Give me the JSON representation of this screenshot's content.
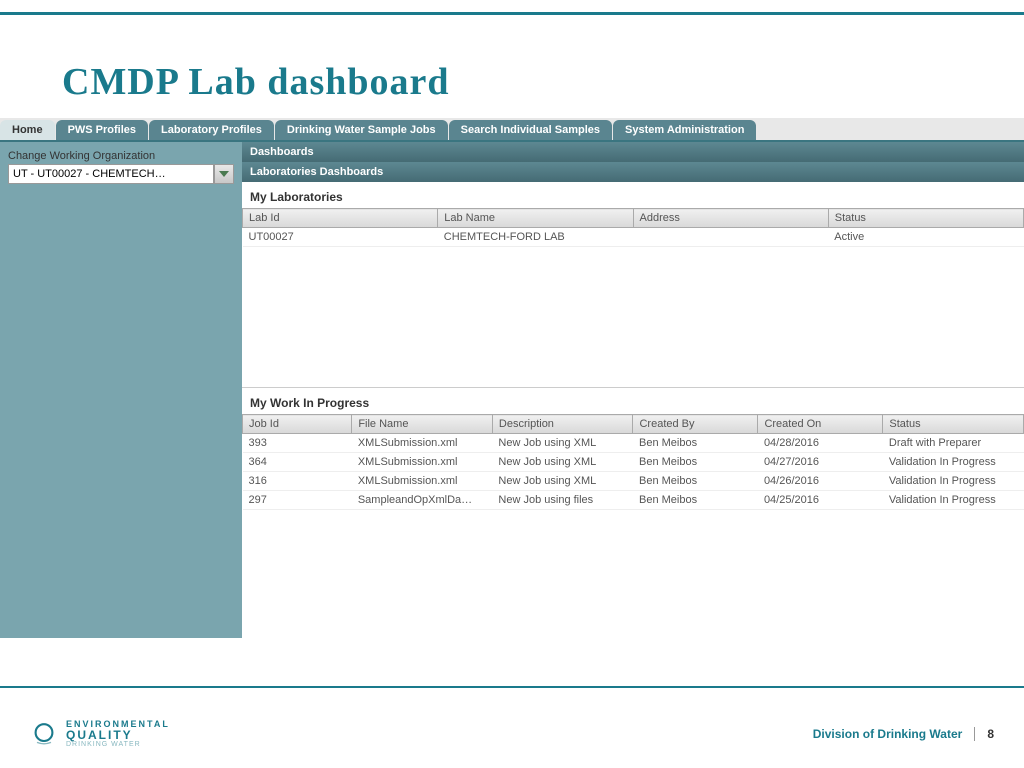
{
  "slide": {
    "title": "CMDP Lab dashboard",
    "footer_text": "Division of Drinking Water",
    "page_number": "8",
    "logo": {
      "line1": "ENVIRONMENTAL",
      "line2": "QUALITY",
      "line3": "DRINKING WATER"
    }
  },
  "colors": {
    "accent": "#1a7a8c",
    "tab_bg": "#5a8590",
    "panel_header": "#5d8892",
    "body_bg": "#7aa5ae"
  },
  "tabs": [
    {
      "label": "Home",
      "active": true
    },
    {
      "label": "PWS Profiles",
      "active": false
    },
    {
      "label": "Laboratory Profiles",
      "active": false
    },
    {
      "label": "Drinking Water Sample Jobs",
      "active": false
    },
    {
      "label": "Search Individual Samples",
      "active": false
    },
    {
      "label": "System Administration",
      "active": false
    }
  ],
  "sidebar": {
    "label": "Change Working Organization",
    "selected": "UT - UT00027 - CHEMTECH…"
  },
  "panels": {
    "dashboards_header": "Dashboards",
    "labs_dashboards_header": "Laboratories Dashboards",
    "labs_section_title": "My Laboratories",
    "work_section_title": "My Work In Progress"
  },
  "labs_table": {
    "columns": [
      "Lab Id",
      "Lab Name",
      "Address",
      "Status"
    ],
    "col_widths": [
      "25%",
      "25%",
      "25%",
      "25%"
    ],
    "rows": [
      [
        "UT00027",
        "CHEMTECH-FORD LAB",
        "",
        "Active"
      ]
    ]
  },
  "work_table": {
    "columns": [
      "Job Id",
      "File Name",
      "Description",
      "Created By",
      "Created On",
      "Status"
    ],
    "col_widths": [
      "14%",
      "18%",
      "18%",
      "16%",
      "16%",
      "18%"
    ],
    "rows": [
      [
        "393",
        "XMLSubmission.xml",
        "New Job using XML",
        "Ben Meibos",
        "04/28/2016",
        "Draft with Preparer"
      ],
      [
        "364",
        "XMLSubmission.xml",
        "New Job using XML",
        "Ben Meibos",
        "04/27/2016",
        "Validation In Progress"
      ],
      [
        "316",
        "XMLSubmission.xml",
        "New Job using XML",
        "Ben Meibos",
        "04/26/2016",
        "Validation In Progress"
      ],
      [
        "297",
        "SampleandOpXmlDa…",
        "New Job using files",
        "Ben Meibos",
        "04/25/2016",
        "Validation In Progress"
      ]
    ]
  }
}
